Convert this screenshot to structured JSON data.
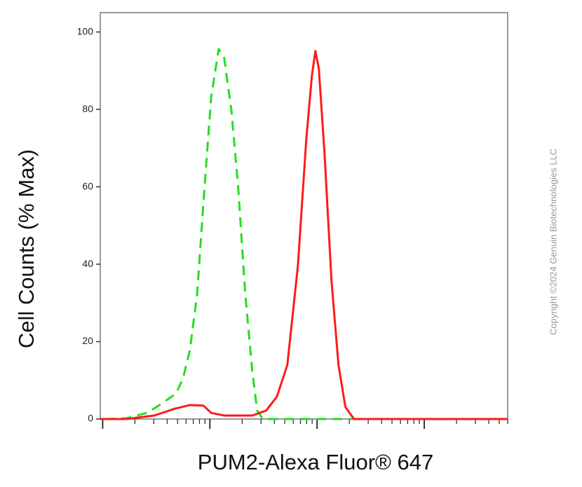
{
  "chart_data": {
    "type": "line",
    "y_label": "Cell Counts (% Max)",
    "x_label": "PUM2-Alexa Fluor® 647",
    "watermark": "Copyright ©2024 Genuin Biotechnologies LLC",
    "xlog": true,
    "xlim": [
      0.95,
      6000
    ],
    "ylim": [
      0,
      105
    ],
    "yticks": [
      0,
      20,
      40,
      60,
      80,
      100
    ],
    "xticks": [
      1,
      2,
      3,
      4,
      5,
      6,
      7,
      8,
      9,
      10,
      20,
      30,
      40,
      50,
      60,
      70,
      80,
      90,
      100,
      200,
      300,
      400,
      500,
      600,
      700,
      800,
      900,
      1000,
      2000,
      3000,
      4000,
      5000,
      6000
    ],
    "series": [
      {
        "color": "#22e01a",
        "dash": true,
        "x": [
          1.06,
          1.66,
          2.6,
          3.57,
          4.83,
          5.6,
          6.5,
          7.6,
          8.8,
          10.3,
          12.1,
          13.6,
          15.9,
          18.4,
          21.4,
          24.9,
          27.6,
          31.2,
          45.5,
          6000
        ],
        "values": [
          0,
          0.2,
          1.6,
          4,
          6.6,
          10.4,
          17.7,
          32.2,
          57.7,
          83.2,
          95.6,
          93.3,
          79.6,
          59.6,
          32.2,
          12.2,
          2.2,
          0,
          0,
          0
        ]
      },
      {
        "color": "#ff1a1a",
        "dash": false,
        "x": [
          0.95,
          1.66,
          3.03,
          4.75,
          6.5,
          8.7,
          10.3,
          13.6,
          24.9,
          33.6,
          42.2,
          52.8,
          66.2,
          79.3,
          89.5,
          96.5,
          103.9,
          117.4,
          136.3,
          158.5,
          184,
          221,
          321,
          6000
        ],
        "values": [
          0,
          0,
          0.9,
          2.7,
          3.6,
          3.5,
          1.6,
          0.9,
          0.9,
          2.2,
          5.8,
          14,
          39.5,
          72.3,
          88.7,
          95.1,
          90.5,
          68.7,
          35.9,
          14,
          3.1,
          0,
          0,
          0
        ]
      }
    ]
  }
}
